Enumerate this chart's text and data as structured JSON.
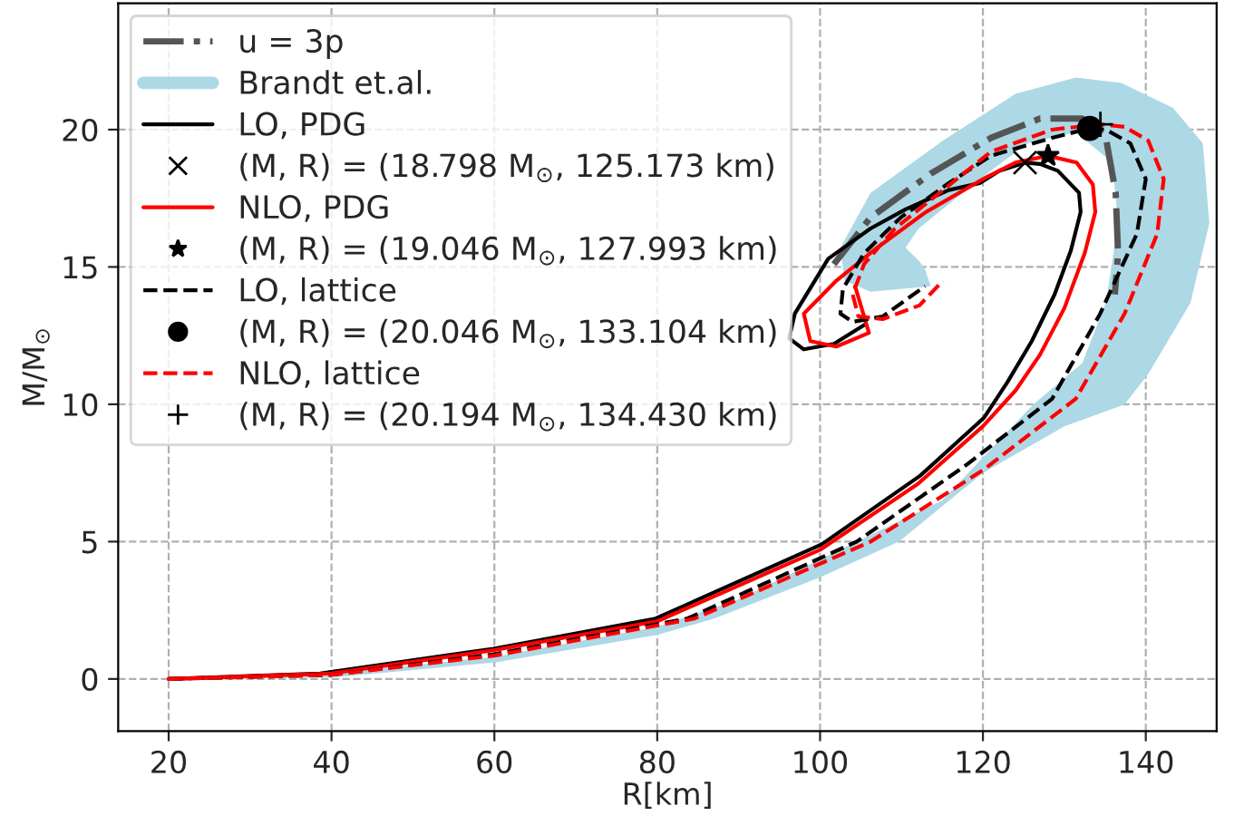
{
  "chart_data": {
    "type": "line",
    "xlabel": "R[km]",
    "ylabel": "M/M$_{⊙}$",
    "xlim": [
      13.8,
      148.7
    ],
    "ylim": [
      -1.9,
      24.6
    ],
    "xticks": [
      20,
      40,
      60,
      80,
      100,
      120,
      140
    ],
    "yticks": [
      0,
      5,
      10,
      15,
      20
    ],
    "grid": true,
    "legend": "top left",
    "series": [
      {
        "name": "u = 3p",
        "color": "#555555",
        "line_style": "dashdot",
        "x": [
          101.7,
          106.2,
          113.6,
          121,
          127,
          132.2,
          135.1,
          136.3,
          136.6,
          136.2
        ],
        "values": [
          15.1,
          16.8,
          18.4,
          19.7,
          20.4,
          20.4,
          19.7,
          17.7,
          15.5,
          14.0
        ]
      },
      {
        "name": "Brandt et.al.",
        "type": "area",
        "color": "#add8e6",
        "x": [
          20,
          40,
          60,
          80,
          87,
          100,
          109.7,
          120,
          130,
          137.4,
          140.3,
          145.5,
          147.8,
          147,
          143.3,
          137,
          131.4,
          124,
          115.1,
          106.2,
          102.5,
          103,
          106.2,
          113.6,
          112.9,
          112.2,
          110.5,
          112.1,
          119.6,
          125.5,
          131.4,
          135.9,
          136.6,
          135.1,
          132.2,
          126.2,
          115,
          104.5,
          90,
          80,
          60,
          40,
          20
        ],
        "values": [
          0,
          0.05,
          0.6,
          1.6,
          2.2,
          3.7,
          5,
          7.5,
          9.2,
          10,
          11.1,
          13.7,
          16.6,
          19.5,
          20.8,
          21.7,
          21.9,
          21.3,
          19.6,
          17.7,
          15.7,
          14.5,
          14.1,
          14.3,
          14.9,
          15.2,
          15.7,
          16.4,
          18.2,
          19.5,
          19.9,
          18.8,
          16.6,
          13.7,
          11.5,
          10,
          6.5,
          5,
          2.9,
          1.9,
          0.8,
          0.2,
          0
        ]
      },
      {
        "name": "LO, PDG",
        "color": "#000000",
        "line_style": "solid",
        "x": [
          20,
          38.6,
          59.9,
          79.8,
          100.2,
          112.3,
          120.1,
          123,
          126,
          128.8,
          130.8,
          132,
          131.8,
          129.2,
          127,
          125.17,
          122,
          119.6,
          115.8,
          110.5,
          106.2,
          101,
          96.9,
          96.2,
          98,
          101.7,
          105.5
        ],
        "values": [
          0,
          0.2,
          1.1,
          2.2,
          4.9,
          7.4,
          9.5,
          10.8,
          12.3,
          14,
          15.6,
          17,
          17.7,
          18.5,
          18.75,
          18.8,
          18.5,
          18.05,
          17.8,
          17.1,
          16.4,
          15.3,
          13.3,
          12.4,
          12,
          12.2,
          12.9
        ]
      },
      {
        "name": "(M, R) = (18.798 M$_{⊙}$, 125.173 km)",
        "type": "scatter",
        "color": "#000000",
        "marker": "cross",
        "x": [
          125.173
        ],
        "values": [
          18.798
        ]
      },
      {
        "name": "NLO, PDG",
        "color": "#ff0000",
        "line_style": "solid",
        "x": [
          20,
          40,
          60,
          80,
          100,
          112,
          120,
          124,
          127,
          130,
          132.5,
          133.8,
          133.5,
          131.5,
          127.993,
          124,
          120,
          113,
          107,
          102,
          98,
          98.8,
          102,
          106,
          104.3
        ],
        "values": [
          0,
          0.2,
          1.05,
          2.1,
          4.7,
          7.1,
          9.2,
          10.5,
          11.8,
          13.5,
          15.5,
          17,
          18,
          18.8,
          19.046,
          18.8,
          18.2,
          17,
          15.7,
          14.5,
          13.3,
          12.3,
          12.1,
          12.6,
          14.3
        ]
      },
      {
        "name": "(M, R) = (19.046 M$_{⊙}$, 127.993 km)",
        "type": "scatter",
        "color": "#000000",
        "marker": "star",
        "x": [
          127.993
        ],
        "values": [
          19.046
        ]
      },
      {
        "name": "LO, lattice",
        "color": "#000000",
        "line_style": "dashed",
        "x": [
          20,
          40,
          60,
          83.7,
          104.5,
          118,
          128.5,
          134.4,
          138.9,
          140,
          138.1,
          135.1,
          133.104,
          128.5,
          121,
          115.8,
          109.9,
          105.4,
          102.8,
          102.5,
          104,
          107.7,
          112.9
        ],
        "values": [
          0,
          0.15,
          0.9,
          2.2,
          5,
          7.8,
          10.2,
          13.3,
          16.2,
          18.2,
          19.5,
          20,
          20.046,
          19.7,
          19.05,
          18.05,
          16.8,
          15.5,
          14.2,
          13.3,
          13,
          13.2,
          14.3
        ]
      },
      {
        "name": "(M, R) = (20.046 M$_{⊙}$, 133.104 km)",
        "type": "scatter",
        "color": "#000000",
        "marker": "circle",
        "x": [
          133.104
        ],
        "values": [
          20.046
        ]
      },
      {
        "name": "NLO, lattice",
        "color": "#ff0000",
        "line_style": "dashed",
        "x": [
          20,
          40,
          60,
          84.6,
          106.2,
          120,
          131.4,
          137.4,
          141.4,
          142.2,
          140.3,
          137.4,
          134.43,
          128.5,
          121,
          115.1,
          109.2,
          105.4,
          104,
          104.7,
          107.7,
          112.2,
          115.1
        ],
        "values": [
          0,
          0.15,
          0.85,
          2.2,
          5,
          7.6,
          10.2,
          13.3,
          16.2,
          18.2,
          19.6,
          20.1,
          20.194,
          20,
          19.2,
          17.8,
          16.4,
          15.1,
          14,
          13.2,
          13.1,
          13.6,
          14.5
        ]
      },
      {
        "name": "(M, R) = (20.194 M$_{⊙}$, 134.430 km)",
        "type": "scatter",
        "color": "#000000",
        "marker": "plus",
        "x": [
          134.43
        ],
        "values": [
          20.194
        ]
      }
    ]
  }
}
